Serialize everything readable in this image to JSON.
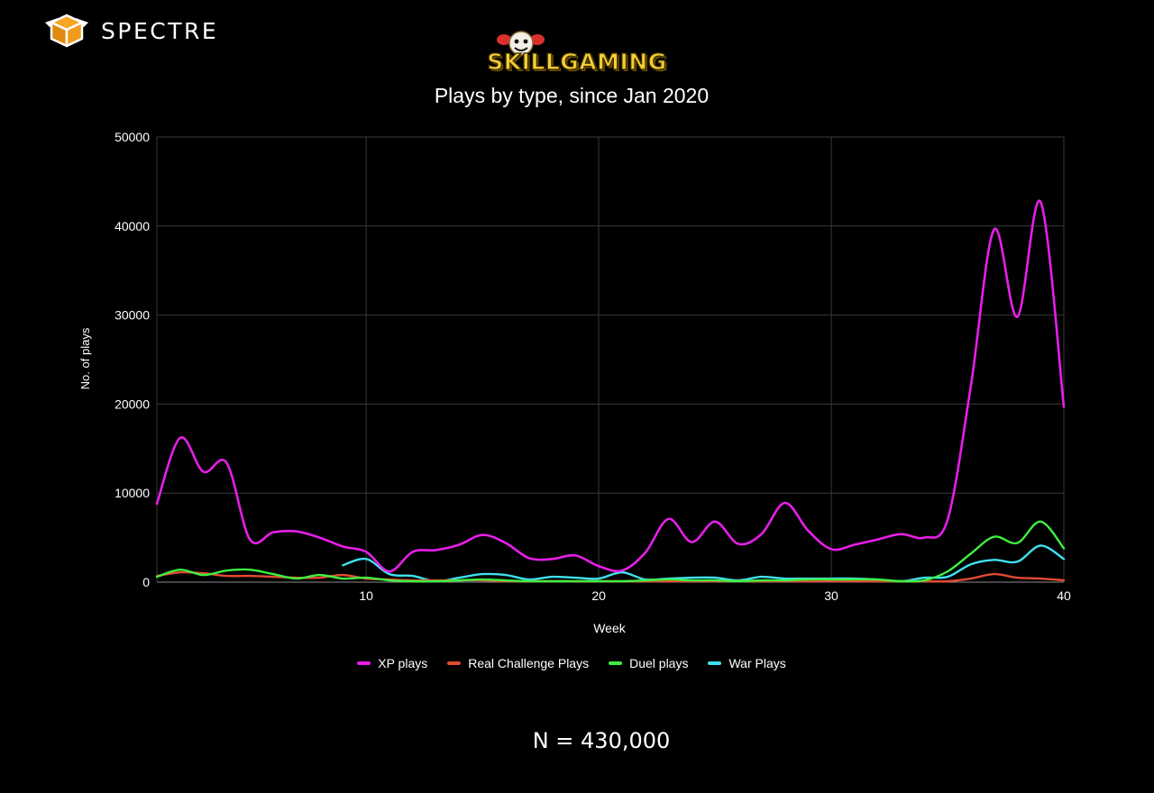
{
  "brand": {
    "name": "SPECTRE",
    "icon": "cube-icon"
  },
  "game_logo": {
    "text": "SKILLGAMING",
    "icon": "mascot-icon"
  },
  "footnote": "N = 430,000",
  "colors": {
    "background": "#000000",
    "grid": "#3a3a3a",
    "xp": "#e81ee8",
    "real": "#e24a33",
    "duel": "#3fef3f",
    "war": "#3fe0ee"
  },
  "chart_data": {
    "type": "line",
    "title": "Plays by type, since Jan 2020",
    "xlabel": "Week",
    "ylabel": "No. of plays",
    "xlim": [
      1,
      40
    ],
    "ylim": [
      0,
      50000
    ],
    "x_ticks": [
      10,
      20,
      30,
      40
    ],
    "y_ticks": [
      0,
      10000,
      20000,
      30000,
      40000,
      50000
    ],
    "grid": true,
    "smooth": true,
    "legend_position": "bottom",
    "series": [
      {
        "name": "XP plays",
        "color": "#e81ee8",
        "x": [
          1,
          2,
          3,
          4,
          5,
          6,
          7,
          8,
          9,
          10,
          11,
          12,
          13,
          14,
          15,
          16,
          17,
          18,
          19,
          20,
          21,
          22,
          23,
          24,
          25,
          26,
          27,
          28,
          29,
          30,
          31,
          32,
          33,
          34,
          35,
          36,
          37,
          38,
          39,
          40
        ],
        "y": [
          8800,
          16200,
          12400,
          13400,
          4800,
          5600,
          5700,
          5000,
          4000,
          3400,
          1200,
          3400,
          3600,
          4200,
          5300,
          4400,
          2700,
          2600,
          3000,
          1800,
          1300,
          3300,
          7100,
          4500,
          6800,
          4300,
          5400,
          8900,
          5800,
          3700,
          4200,
          4800,
          5400,
          5000,
          7000,
          22000,
          39600,
          29800,
          42700,
          19700
        ]
      },
      {
        "name": "Real Challenge Plays",
        "color": "#e24a33",
        "x": [
          1,
          2,
          3,
          4,
          5,
          6,
          7,
          8,
          9,
          10,
          11,
          12,
          13,
          14,
          15,
          16,
          17,
          18,
          19,
          20,
          21,
          22,
          23,
          24,
          25,
          26,
          27,
          28,
          29,
          30,
          31,
          32,
          33,
          34,
          35,
          36,
          37,
          38,
          39,
          40
        ],
        "y": [
          700,
          1100,
          1000,
          700,
          700,
          600,
          500,
          500,
          800,
          400,
          300,
          200,
          200,
          200,
          200,
          100,
          100,
          100,
          100,
          100,
          100,
          100,
          100,
          100,
          100,
          100,
          100,
          100,
          100,
          100,
          100,
          100,
          100,
          100,
          100,
          400,
          900,
          500,
          400,
          200
        ]
      },
      {
        "name": "Duel plays",
        "color": "#3fef3f",
        "x": [
          1,
          2,
          3,
          4,
          5,
          6,
          7,
          8,
          9,
          10,
          11,
          12,
          13,
          14,
          15,
          16,
          17,
          18,
          19,
          20,
          21,
          22,
          23,
          24,
          25,
          26,
          27,
          28,
          29,
          30,
          31,
          32,
          33,
          34,
          35,
          36,
          37,
          38,
          39,
          40
        ],
        "y": [
          600,
          1400,
          800,
          1300,
          1400,
          900,
          400,
          800,
          400,
          500,
          200,
          100,
          100,
          200,
          300,
          200,
          100,
          100,
          100,
          100,
          100,
          200,
          300,
          200,
          200,
          100,
          200,
          200,
          300,
          300,
          300,
          300,
          100,
          200,
          1200,
          3200,
          5100,
          4400,
          6800,
          3800
        ]
      },
      {
        "name": "War Plays",
        "color": "#3fe0ee",
        "x": [
          9,
          10,
          11,
          12,
          13,
          14,
          15,
          16,
          17,
          18,
          19,
          20,
          21,
          22,
          23,
          24,
          25,
          26,
          27,
          28,
          29,
          30,
          31,
          32,
          33,
          34,
          35,
          36,
          37,
          38,
          39,
          40
        ],
        "y": [
          1900,
          2600,
          900,
          700,
          100,
          500,
          900,
          800,
          300,
          600,
          500,
          400,
          1100,
          300,
          400,
          500,
          500,
          200,
          600,
          400,
          400,
          400,
          400,
          300,
          100,
          500,
          600,
          2000,
          2500,
          2300,
          4100,
          2600
        ]
      }
    ]
  }
}
